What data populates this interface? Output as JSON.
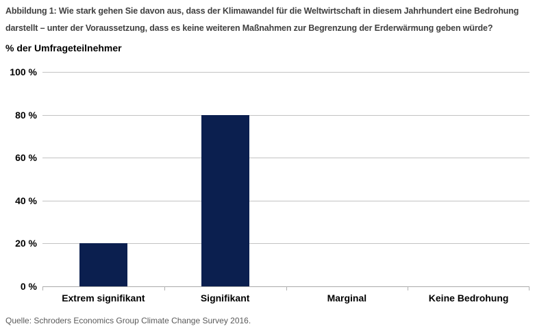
{
  "source": "Quelle: Schroders Economics Group Climate Change Survey 2016.",
  "colors": {
    "bar": "#0b1f4f",
    "gridline": "#c2c2c2",
    "axis_line": "#a8a8a8",
    "title_text": "#404040",
    "axis_text": "#000000",
    "source_text": "#595959"
  },
  "chart_data": {
    "type": "bar",
    "title": "Abbildung 1: Wie stark gehen Sie davon aus, dass der Klimawandel für die Weltwirtschaft in diesem Jahrhundert eine Bedrohung darstellt – unter der Voraussetzung, dass es keine weiteren Maßnahmen zur Begrenzung der Erderwärmung geben würde?",
    "categories": [
      "Extrem signifikant",
      "Signifikant",
      "Marginal",
      "Keine Bedrohung"
    ],
    "values": [
      20,
      80,
      0,
      0
    ],
    "xlabel": "",
    "ylabel": "% der Umfrageteilnehmer",
    "ylim": [
      0,
      100
    ],
    "ytick_step": 20,
    "ytick_labels": [
      "0 %",
      "20 %",
      "40 %",
      "60 %",
      "80 %",
      "100 %"
    ],
    "grid": true,
    "legend": false,
    "bar_color": "#0b1f4f"
  }
}
